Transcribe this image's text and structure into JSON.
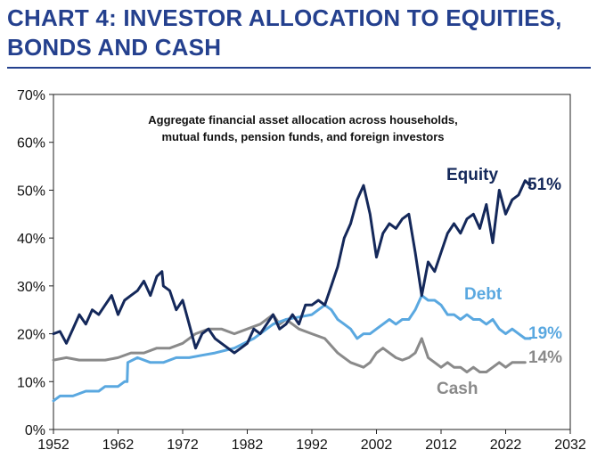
{
  "header": {
    "title_line1": "CHART 4: INVESTOR ALLOCATION TO EQUITIES,",
    "title_line2": "BONDS AND CASH"
  },
  "colors": {
    "title": "#24408E",
    "rule": "#24408E",
    "equity": "#14285A",
    "debt": "#5AA8E0",
    "cash": "#8A8A8A"
  },
  "chart_data": {
    "type": "line",
    "subtitle_line1": "Aggregate financial asset allocation across households,",
    "subtitle_line2": "mutual funds, pension funds, and foreign investors",
    "xlim": [
      1952,
      2032
    ],
    "ylim": [
      0,
      70
    ],
    "x_ticks": [
      1952,
      1962,
      1972,
      1982,
      1992,
      2002,
      2012,
      2022,
      2032
    ],
    "y_ticks": [
      "0%",
      "10%",
      "20%",
      "30%",
      "40%",
      "50%",
      "60%",
      "70%"
    ],
    "grid": false,
    "series": [
      {
        "name": "Equity",
        "end_label": "51%",
        "points": [
          [
            1952,
            20
          ],
          [
            1953,
            20.5
          ],
          [
            1954,
            18
          ],
          [
            1955,
            21
          ],
          [
            1956,
            24
          ],
          [
            1957,
            22
          ],
          [
            1958,
            25
          ],
          [
            1959,
            24
          ],
          [
            1960,
            26
          ],
          [
            1961,
            28
          ],
          [
            1962,
            24
          ],
          [
            1963,
            27
          ],
          [
            1964,
            28
          ],
          [
            1965,
            29
          ],
          [
            1966,
            31
          ],
          [
            1967,
            28
          ],
          [
            1968,
            32
          ],
          [
            1968.8,
            33
          ],
          [
            1969,
            30
          ],
          [
            1970,
            29
          ],
          [
            1971,
            25
          ],
          [
            1972,
            27
          ],
          [
            1973,
            22
          ],
          [
            1974,
            17
          ],
          [
            1975,
            20
          ],
          [
            1976,
            21
          ],
          [
            1977,
            19
          ],
          [
            1978,
            18
          ],
          [
            1979,
            17
          ],
          [
            1980,
            16
          ],
          [
            1981,
            17
          ],
          [
            1982,
            18
          ],
          [
            1983,
            21
          ],
          [
            1984,
            20
          ],
          [
            1985,
            22
          ],
          [
            1986,
            24
          ],
          [
            1987,
            21
          ],
          [
            1988,
            22
          ],
          [
            1989,
            24
          ],
          [
            1990,
            22
          ],
          [
            1991,
            26
          ],
          [
            1992,
            26
          ],
          [
            1993,
            27
          ],
          [
            1994,
            26
          ],
          [
            1995,
            30
          ],
          [
            1996,
            34
          ],
          [
            1997,
            40
          ],
          [
            1998,
            43
          ],
          [
            1999,
            48
          ],
          [
            2000,
            51
          ],
          [
            2001,
            45
          ],
          [
            2002,
            36
          ],
          [
            2003,
            41
          ],
          [
            2004,
            43
          ],
          [
            2005,
            42
          ],
          [
            2006,
            44
          ],
          [
            2007,
            45
          ],
          [
            2008,
            37
          ],
          [
            2009,
            28
          ],
          [
            2010,
            35
          ],
          [
            2011,
            33
          ],
          [
            2012,
            37
          ],
          [
            2013,
            41
          ],
          [
            2014,
            43
          ],
          [
            2015,
            41
          ],
          [
            2016,
            44
          ],
          [
            2017,
            45
          ],
          [
            2018,
            42
          ],
          [
            2019,
            47
          ],
          [
            2020,
            39
          ],
          [
            2021,
            50
          ],
          [
            2022,
            45
          ],
          [
            2023,
            48
          ],
          [
            2024,
            49
          ],
          [
            2025,
            52
          ],
          [
            2025.8,
            51
          ]
        ]
      },
      {
        "name": "Debt",
        "end_label": "19%",
        "points": [
          [
            1952,
            6
          ],
          [
            1953,
            7
          ],
          [
            1955,
            7
          ],
          [
            1957,
            8
          ],
          [
            1959,
            8
          ],
          [
            1960,
            9
          ],
          [
            1962,
            9
          ],
          [
            1963,
            10
          ],
          [
            1963.4,
            10
          ],
          [
            1963.5,
            14
          ],
          [
            1965,
            15
          ],
          [
            1967,
            14
          ],
          [
            1969,
            14
          ],
          [
            1971,
            15
          ],
          [
            1973,
            15
          ],
          [
            1975,
            15.5
          ],
          [
            1977,
            16
          ],
          [
            1980,
            17
          ],
          [
            1983,
            19
          ],
          [
            1986,
            22
          ],
          [
            1988,
            23
          ],
          [
            1990,
            23.5
          ],
          [
            1992,
            24
          ],
          [
            1994,
            26
          ],
          [
            1995,
            25
          ],
          [
            1996,
            23
          ],
          [
            1997,
            22
          ],
          [
            1998,
            21
          ],
          [
            1999,
            19
          ],
          [
            2000,
            20
          ],
          [
            2001,
            20
          ],
          [
            2002,
            21
          ],
          [
            2003,
            22
          ],
          [
            2004,
            23
          ],
          [
            2005,
            22
          ],
          [
            2006,
            23
          ],
          [
            2007,
            23
          ],
          [
            2008,
            25
          ],
          [
            2009,
            28
          ],
          [
            2010,
            27
          ],
          [
            2011,
            27
          ],
          [
            2012,
            26
          ],
          [
            2013,
            24
          ],
          [
            2014,
            24
          ],
          [
            2015,
            23
          ],
          [
            2016,
            24
          ],
          [
            2017,
            23
          ],
          [
            2018,
            23
          ],
          [
            2019,
            22
          ],
          [
            2020,
            23
          ],
          [
            2021,
            21
          ],
          [
            2022,
            20
          ],
          [
            2023,
            21
          ],
          [
            2024,
            20
          ],
          [
            2025,
            19
          ],
          [
            2025.8,
            19
          ]
        ]
      },
      {
        "name": "Cash",
        "end_label": "14%",
        "points": [
          [
            1952,
            14.5
          ],
          [
            1954,
            15
          ],
          [
            1956,
            14.5
          ],
          [
            1958,
            14.5
          ],
          [
            1960,
            14.5
          ],
          [
            1962,
            15
          ],
          [
            1964,
            16
          ],
          [
            1966,
            16
          ],
          [
            1968,
            17
          ],
          [
            1970,
            17
          ],
          [
            1972,
            18
          ],
          [
            1973,
            19
          ],
          [
            1974,
            20
          ],
          [
            1976,
            21
          ],
          [
            1978,
            21
          ],
          [
            1980,
            20
          ],
          [
            1982,
            21
          ],
          [
            1984,
            22
          ],
          [
            1986,
            24
          ],
          [
            1987,
            22
          ],
          [
            1988,
            23
          ],
          [
            1989,
            22
          ],
          [
            1990,
            21
          ],
          [
            1992,
            20
          ],
          [
            1994,
            19
          ],
          [
            1996,
            16
          ],
          [
            1998,
            14
          ],
          [
            2000,
            13
          ],
          [
            2001,
            14
          ],
          [
            2002,
            16
          ],
          [
            2003,
            17
          ],
          [
            2004,
            16
          ],
          [
            2005,
            15
          ],
          [
            2006,
            14.5
          ],
          [
            2007,
            15
          ],
          [
            2008,
            16
          ],
          [
            2009,
            19
          ],
          [
            2010,
            15
          ],
          [
            2011,
            14
          ],
          [
            2012,
            13
          ],
          [
            2013,
            14
          ],
          [
            2014,
            13
          ],
          [
            2015,
            13
          ],
          [
            2016,
            12
          ],
          [
            2017,
            13
          ],
          [
            2018,
            12
          ],
          [
            2019,
            12
          ],
          [
            2020,
            13
          ],
          [
            2021,
            14
          ],
          [
            2022,
            13
          ],
          [
            2023,
            14
          ],
          [
            2024,
            14
          ],
          [
            2025,
            14
          ]
        ]
      }
    ]
  }
}
